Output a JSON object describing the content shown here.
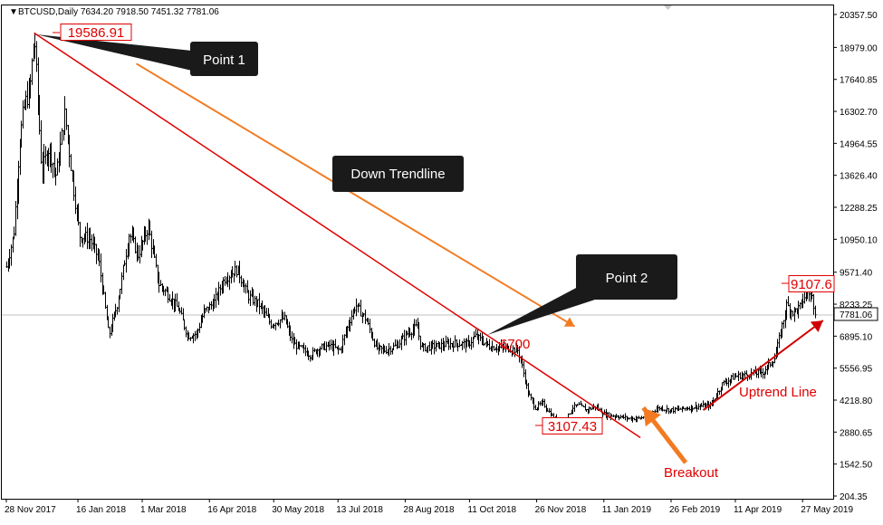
{
  "chart_data": {
    "type": "candlestick",
    "symbol_line": "BTCUSD,Daily  7634.20 7918.50 7451.32 7781.06",
    "ohlc_last": {
      "open": 7634.2,
      "high": 7918.5,
      "low": 7451.32,
      "close": 7781.06
    },
    "current_price_label": "7781.06",
    "y_ticks": [
      "20357.50",
      "18979.00",
      "17640.85",
      "16302.70",
      "14964.55",
      "13626.40",
      "12288.25",
      "10950.10",
      "9571.40",
      "8233.25",
      "6895.10",
      "5556.95",
      "4218.80",
      "2880.65",
      "1542.50",
      "204.35"
    ],
    "y_range": [
      204.35,
      20357.5
    ],
    "x_ticks": [
      "28 Nov 2017",
      "16 Jan 2018",
      "1 Mar 2018",
      "16 Apr 2018",
      "30 May 2018",
      "13 Jul 2018",
      "28 Aug 2018",
      "11 Oct 2018",
      "26 Nov 2018",
      "11 Jan 2019",
      "26 Feb 2019",
      "11 Apr 2019",
      "27 May 2019"
    ],
    "price_path": [
      [
        "2017-11-28",
        9800
      ],
      [
        "2017-12-03",
        11200
      ],
      [
        "2017-12-07",
        15000
      ],
      [
        "2017-12-10",
        16500
      ],
      [
        "2017-12-14",
        17200
      ],
      [
        "2017-12-17",
        19586.91
      ],
      [
        "2017-12-22",
        13800
      ],
      [
        "2017-12-27",
        14800
      ],
      [
        "2018-01-01",
        13600
      ],
      [
        "2018-01-07",
        16200
      ],
      [
        "2018-01-12",
        13500
      ],
      [
        "2018-01-17",
        11100
      ],
      [
        "2018-01-24",
        11000
      ],
      [
        "2018-01-30",
        10100
      ],
      [
        "2018-02-06",
        6900
      ],
      [
        "2018-02-12",
        8300
      ],
      [
        "2018-02-20",
        11200
      ],
      [
        "2018-02-26",
        10300
      ],
      [
        "2018-03-05",
        11500
      ],
      [
        "2018-03-12",
        9100
      ],
      [
        "2018-03-19",
        8600
      ],
      [
        "2018-03-26",
        8000
      ],
      [
        "2018-04-01",
        6900
      ],
      [
        "2018-04-07",
        7000
      ],
      [
        "2018-04-12",
        7900
      ],
      [
        "2018-04-19",
        8300
      ],
      [
        "2018-04-26",
        9300
      ],
      [
        "2018-05-05",
        9700
      ],
      [
        "2018-05-12",
        8600
      ],
      [
        "2018-05-20",
        8200
      ],
      [
        "2018-05-28",
        7400
      ],
      [
        "2018-06-06",
        7650
      ],
      [
        "2018-06-12",
        6600
      ],
      [
        "2018-06-24",
        6100
      ],
      [
        "2018-06-30",
        6400
      ],
      [
        "2018-07-07",
        6500
      ],
      [
        "2018-07-14",
        6300
      ],
      [
        "2018-07-20",
        7400
      ],
      [
        "2018-07-25",
        8200
      ],
      [
        "2018-08-01",
        7600
      ],
      [
        "2018-08-08",
        6400
      ],
      [
        "2018-08-14",
        6300
      ],
      [
        "2018-08-22",
        6500
      ],
      [
        "2018-08-29",
        7000
      ],
      [
        "2018-09-05",
        7300
      ],
      [
        "2018-09-08",
        6400
      ],
      [
        "2018-09-20",
        6500
      ],
      [
        "2018-10-01",
        6600
      ],
      [
        "2018-10-10",
        6550
      ],
      [
        "2018-10-15",
        6900
      ],
      [
        "2018-10-25",
        6450
      ],
      [
        "2018-11-05",
        6400
      ],
      [
        "2018-11-13",
        6300
      ],
      [
        "2018-11-16",
        5600
      ],
      [
        "2018-11-20",
        4500
      ],
      [
        "2018-11-25",
        3900
      ],
      [
        "2018-11-30",
        4100
      ],
      [
        "2018-12-07",
        3500
      ],
      [
        "2018-12-15",
        3200
      ],
      [
        "2018-12-20",
        3900
      ],
      [
        "2018-12-25",
        4000
      ],
      [
        "2018-12-30",
        3800
      ],
      [
        "2019-01-05",
        3950
      ],
      [
        "2019-01-12",
        3600
      ],
      [
        "2019-01-20",
        3550
      ],
      [
        "2019-01-28",
        3450
      ],
      [
        "2019-02-05",
        3450
      ],
      [
        "2019-02-10",
        3650
      ],
      [
        "2019-02-18",
        3900
      ],
      [
        "2019-02-25",
        3800
      ],
      [
        "2019-03-05",
        3850
      ],
      [
        "2019-03-15",
        3950
      ],
      [
        "2019-03-25",
        4000
      ],
      [
        "2019-04-02",
        4900
      ],
      [
        "2019-04-10",
        5200
      ],
      [
        "2019-04-20",
        5300
      ],
      [
        "2019-04-30",
        5400
      ],
      [
        "2019-05-08",
        6000
      ],
      [
        "2019-05-12",
        7100
      ],
      [
        "2019-05-16",
        8200
      ],
      [
        "2019-05-20",
        7900
      ],
      [
        "2019-05-25",
        8100
      ],
      [
        "2019-05-30",
        8800
      ],
      [
        "2019-06-02",
        8600
      ],
      [
        "2019-06-05",
        7781.06
      ]
    ],
    "annotations": {
      "high_price": "19586.91",
      "low_price": "3107.43",
      "level_label": "6700",
      "right_price": "9107.6",
      "point1": "Point 1",
      "point2": "Point 2",
      "down_trendline": "Down Trendline",
      "uptrend_line": "Uptrend Line",
      "breakout": "Breakout"
    },
    "lines": {
      "down_trendline": {
        "from": [
          "2017-12-17",
          19586.91
        ],
        "to": [
          "2019-02-05",
          2650
        ]
      },
      "uptrend_line": {
        "from": [
          "2019-03-20",
          3800
        ],
        "to": [
          "2019-06-10",
          7550
        ]
      },
      "orange_arrow": {
        "from": [
          "2018-02-25",
          18300
        ],
        "to": [
          "2018-12-22",
          7300
        ]
      },
      "breakout_arrow": {
        "from": [
          "2019-03-08",
          1600
        ],
        "to": [
          "2019-02-07",
          3900
        ]
      },
      "price_line": 7781.06
    },
    "colors": {
      "candles": "#000000",
      "trendline": "#e00000",
      "orange": "#f27b22",
      "callout_bg": "#1a1a1a",
      "grid": "#c0c0c0"
    }
  }
}
